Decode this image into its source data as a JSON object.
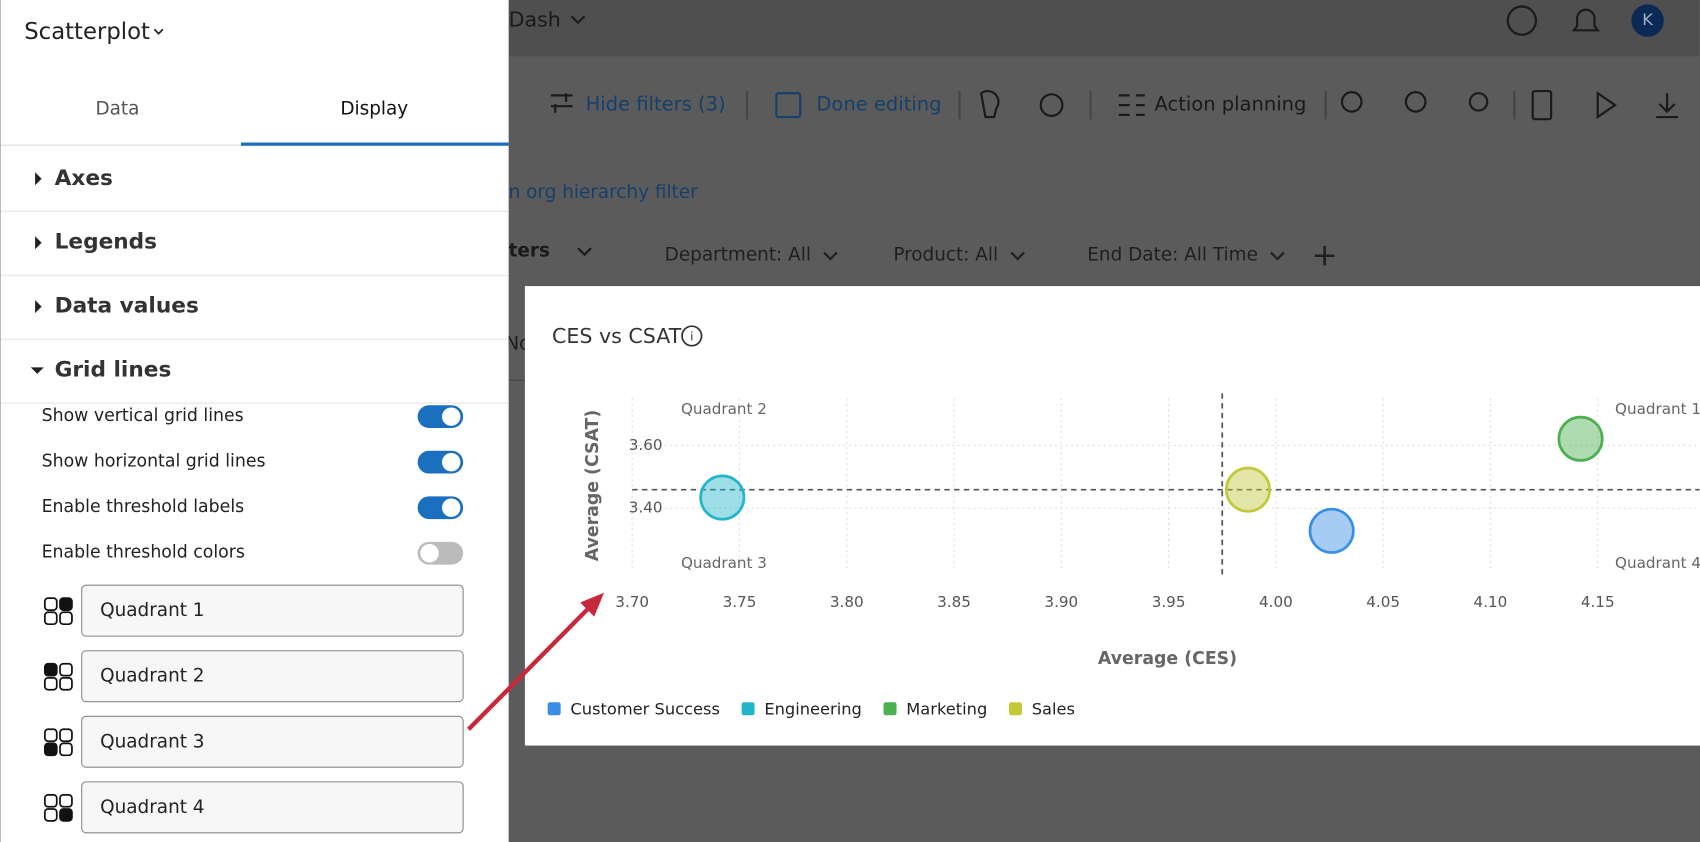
{
  "header": {
    "dashboard": "Dash",
    "avatar": "K"
  },
  "toolbar": {
    "hide_filters": "Hide filters (3)",
    "done_editing": "Done editing",
    "action_planning": "Action planning"
  },
  "filters": {
    "org_filter": "n org hierarchy filter",
    "filters_label": "ters",
    "items": [
      "Department: All",
      "Product: All",
      "End Date: All Time"
    ],
    "partial": "No"
  },
  "panel": {
    "title": "Scatterplot",
    "tabs": [
      "Data",
      "Display"
    ],
    "active_tab": 1,
    "sections": [
      "Axes",
      "Legends",
      "Data values",
      "Grid lines"
    ],
    "toggles": [
      {
        "label": "Show vertical grid lines",
        "on": true
      },
      {
        "label": "Show horizontal grid lines",
        "on": true
      },
      {
        "label": "Enable threshold labels",
        "on": true
      },
      {
        "label": "Enable threshold colors",
        "on": false
      }
    ],
    "quadrant_inputs": [
      "Quadrant 1",
      "Quadrant 2",
      "Quadrant 3",
      "Quadrant 4"
    ]
  },
  "chart_data": {
    "type": "scatter",
    "title": "CES vs CSAT",
    "x_label": "Average (CES)",
    "y_label": "Average (CSAT)",
    "xlim": [
      3.68,
      4.18
    ],
    "ylim": [
      3.2,
      3.75
    ],
    "xticks": [
      {
        "value": 3.7,
        "label": "3.70"
      },
      {
        "value": 3.75,
        "label": "3.75"
      },
      {
        "value": 3.8,
        "label": "3.80"
      },
      {
        "value": 3.85,
        "label": "3.85"
      },
      {
        "value": 3.9,
        "label": "3.90"
      },
      {
        "value": 3.95,
        "label": "3.95"
      },
      {
        "value": 4.0,
        "label": "4.00"
      },
      {
        "value": 4.05,
        "label": "4.05"
      },
      {
        "value": 4.1,
        "label": "4.10"
      },
      {
        "value": 4.15,
        "label": "4.15"
      }
    ],
    "yticks": [
      {
        "value": 3.4,
        "label": "3.40"
      },
      {
        "value": 3.6,
        "label": "3.60"
      }
    ],
    "grid": true,
    "thresholds": {
      "x": 3.975,
      "y": 3.459
    },
    "quadrant_labels": [
      "Quadrant 1",
      "Quadrant 2",
      "Quadrant 3",
      "Quadrant 4"
    ],
    "series": [
      {
        "name": "Customer Success",
        "color": "#3a8ee6",
        "x": [
          4.026
        ],
        "y": [
          3.328
        ]
      },
      {
        "name": "Engineering",
        "color": "#25b5c9",
        "x": [
          3.742
        ],
        "y": [
          3.434
        ]
      },
      {
        "name": "Marketing",
        "color": "#4caf50",
        "x": [
          4.142
        ],
        "y": [
          3.621
        ]
      },
      {
        "name": "Sales",
        "color": "#c2c83a",
        "x": [
          3.987
        ],
        "y": [
          3.459
        ]
      }
    ]
  }
}
